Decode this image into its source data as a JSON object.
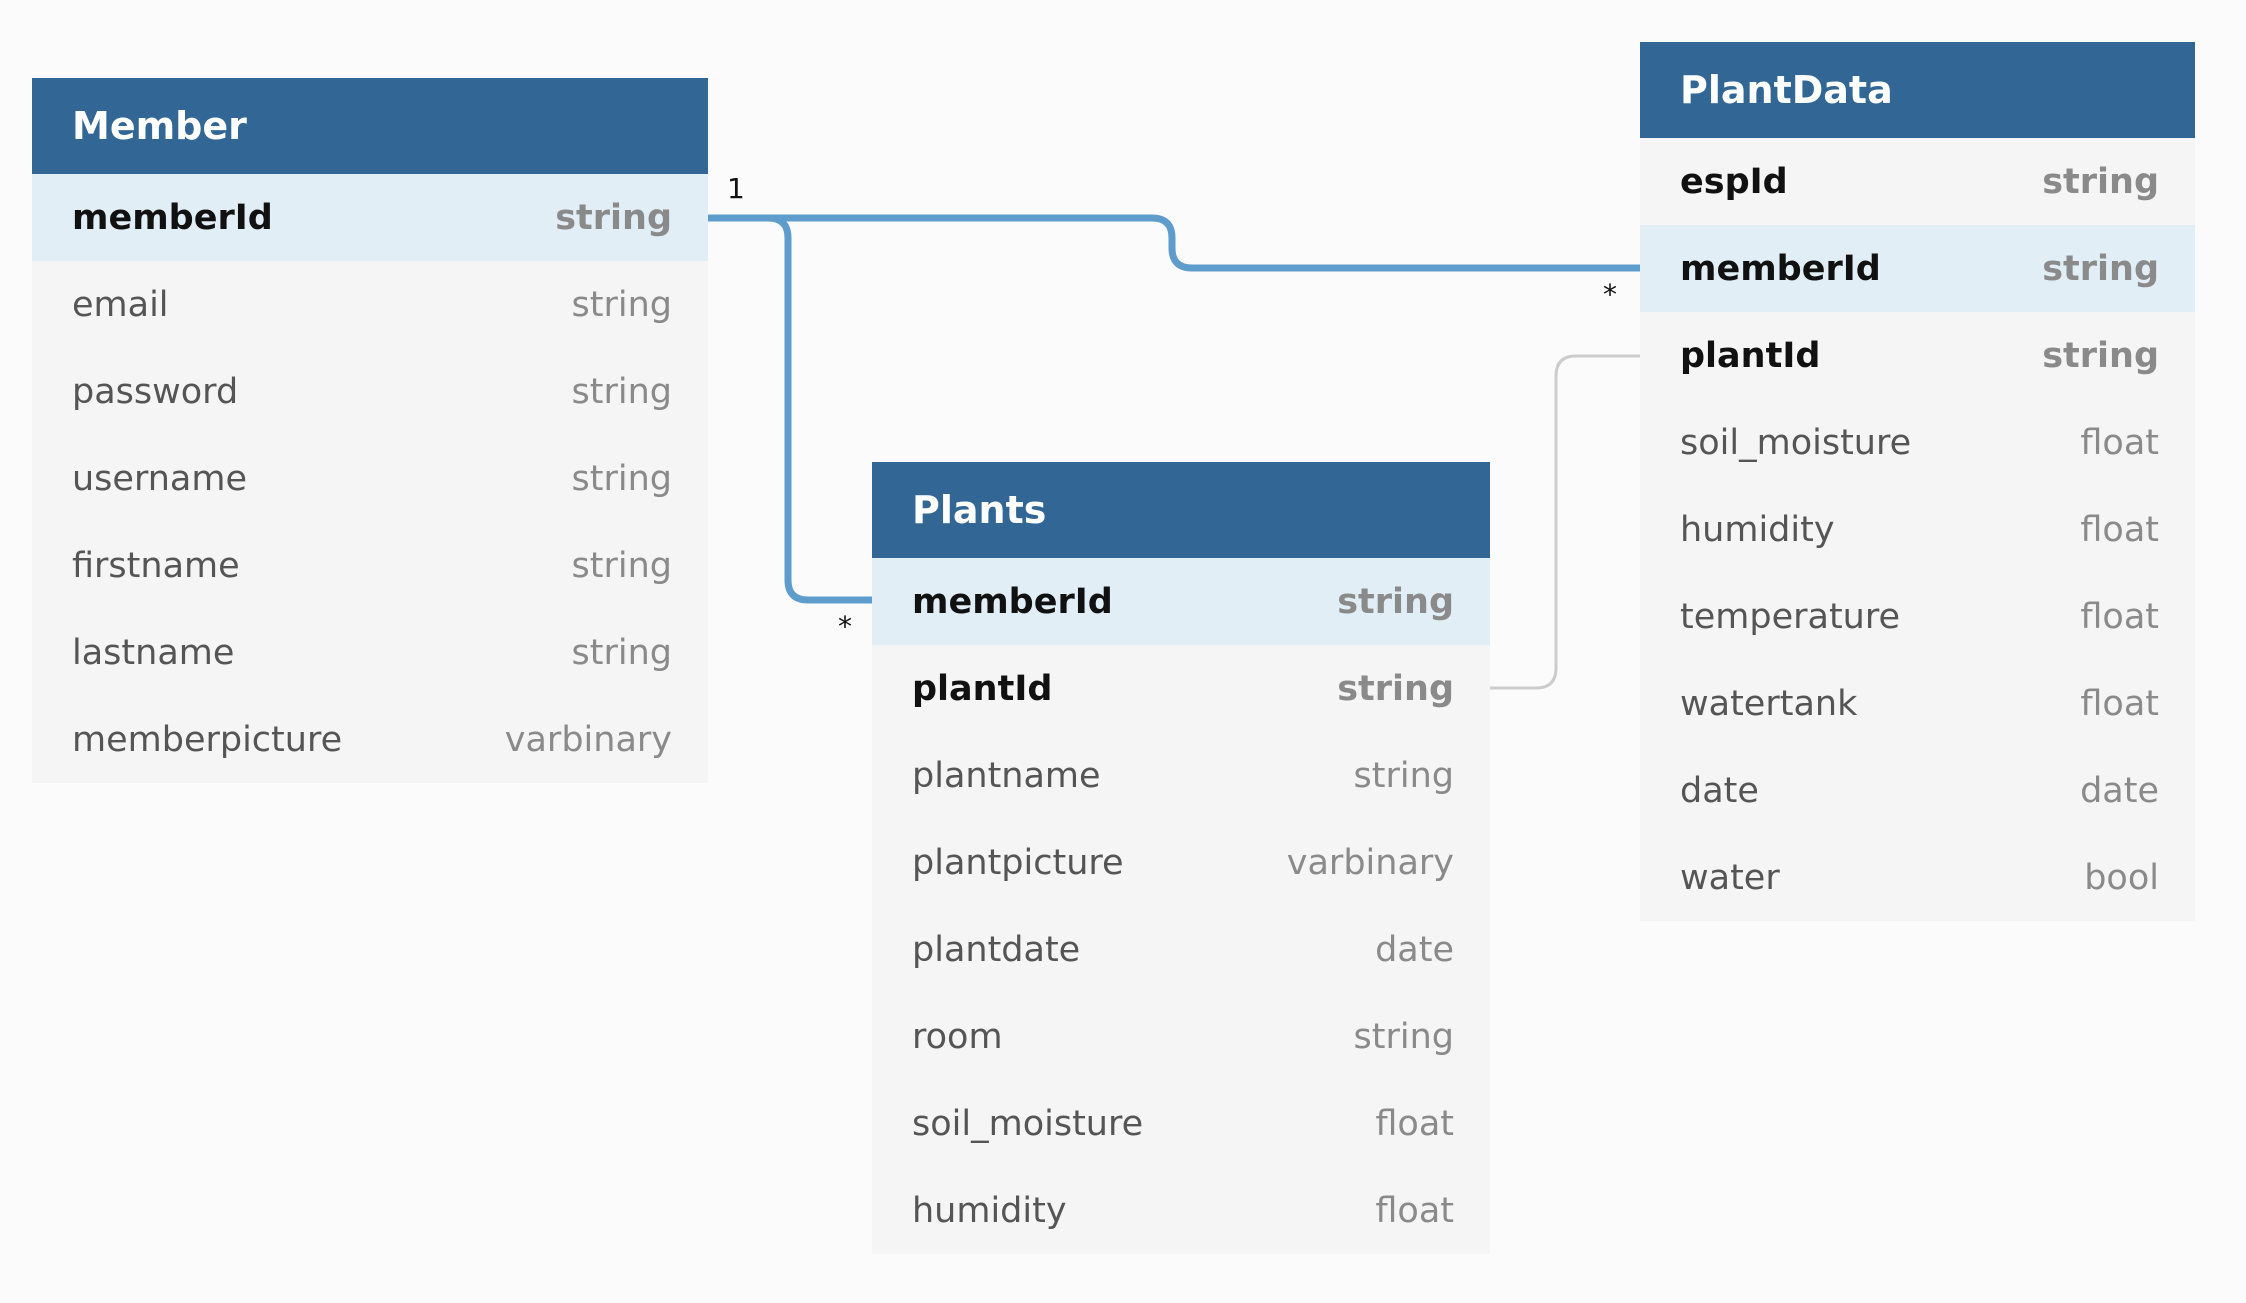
{
  "tables": {
    "member": {
      "title": "Member",
      "rows": [
        {
          "name": "memberId",
          "type": "string"
        },
        {
          "name": "email",
          "type": "string"
        },
        {
          "name": "password",
          "type": "string"
        },
        {
          "name": "username",
          "type": "string"
        },
        {
          "name": "firstname",
          "type": "string"
        },
        {
          "name": "lastname",
          "type": "string"
        },
        {
          "name": "memberpicture",
          "type": "varbinary"
        }
      ]
    },
    "plants": {
      "title": "Plants",
      "rows": [
        {
          "name": "memberId",
          "type": "string"
        },
        {
          "name": "plantId",
          "type": "string"
        },
        {
          "name": "plantname",
          "type": "string"
        },
        {
          "name": "plantpicture",
          "type": "varbinary"
        },
        {
          "name": "plantdate",
          "type": "date"
        },
        {
          "name": "room",
          "type": "string"
        },
        {
          "name": "soil_moisture",
          "type": "float"
        },
        {
          "name": "humidity",
          "type": "float"
        }
      ]
    },
    "plantdata": {
      "title": "PlantData",
      "rows": [
        {
          "name": "espId",
          "type": "string"
        },
        {
          "name": "memberId",
          "type": "string"
        },
        {
          "name": "plantId",
          "type": "string"
        },
        {
          "name": "soil_moisture",
          "type": "float"
        },
        {
          "name": "humidity",
          "type": "float"
        },
        {
          "name": "temperature",
          "type": "float"
        },
        {
          "name": "watertank",
          "type": "float"
        },
        {
          "name": "date",
          "type": "date"
        },
        {
          "name": "water",
          "type": "bool"
        }
      ]
    }
  },
  "relations": {
    "member_plantdata": {
      "from_label": "1",
      "to_label": "*"
    },
    "member_plants": {
      "to_label": "*"
    }
  },
  "colors": {
    "header": "#326795",
    "highlight_row": "#e1eef5",
    "relation_line": "#5e9ccc",
    "secondary_line": "#cccccc"
  }
}
